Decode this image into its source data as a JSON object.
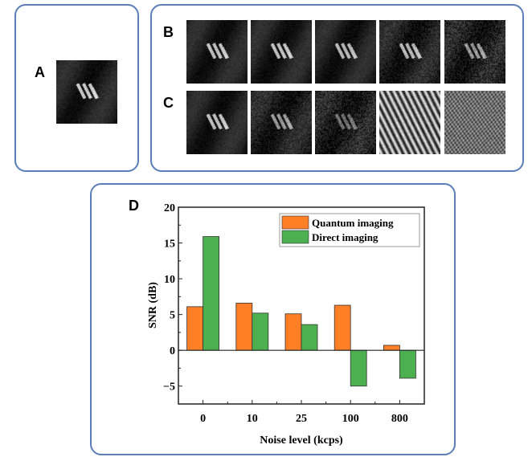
{
  "panels": {
    "a": {
      "label": "A",
      "images": [
        {
          "name": "reference-image",
          "bg": "#1c1c1c",
          "noise": "low",
          "bars_brightness": 0.95
        }
      ]
    },
    "b": {
      "label": "B",
      "images": [
        {
          "name": "b-0",
          "noise": "low",
          "bars_brightness": 0.9
        },
        {
          "name": "b-10",
          "noise": "low",
          "bars_brightness": 0.9
        },
        {
          "name": "b-25",
          "noise": "low",
          "bars_brightness": 0.85
        },
        {
          "name": "b-100",
          "noise": "medium",
          "bars_brightness": 0.85
        },
        {
          "name": "b-800",
          "noise": "high",
          "bars_brightness": 0.7
        }
      ]
    },
    "c": {
      "label": "C",
      "images": [
        {
          "name": "c-0",
          "noise": "low",
          "bars_brightness": 0.9
        },
        {
          "name": "c-10",
          "noise": "medium",
          "bars_brightness": 0.7
        },
        {
          "name": "c-25",
          "noise": "high",
          "bars_brightness": 0.5
        },
        {
          "name": "c-100",
          "noise": "stripes",
          "bars_brightness": 0.0
        },
        {
          "name": "c-800",
          "noise": "grid",
          "bars_brightness": 0.0
        }
      ]
    },
    "d": {
      "label": "D"
    }
  },
  "chart_data": {
    "type": "bar",
    "title": "",
    "xlabel": "Noise level (kcps)",
    "ylabel": "SNR (dB)",
    "categories": [
      "0",
      "10",
      "25",
      "100",
      "800"
    ],
    "series": [
      {
        "name": "Quantum imaging",
        "color": "#ff7f27",
        "values": [
          6.1,
          6.6,
          5.1,
          6.3,
          0.7
        ]
      },
      {
        "name": "Direct imaging",
        "color": "#4cb050",
        "values": [
          15.9,
          5.2,
          3.6,
          -5.0,
          -3.9
        ]
      }
    ],
    "ylim": [
      -7.5,
      20
    ],
    "yticks": [
      -5,
      0,
      5,
      10,
      15,
      20
    ],
    "ytick_labels": [
      "−5",
      "0",
      "5",
      "10",
      "15",
      "20"
    ],
    "legend": "top-right",
    "grid": false
  }
}
